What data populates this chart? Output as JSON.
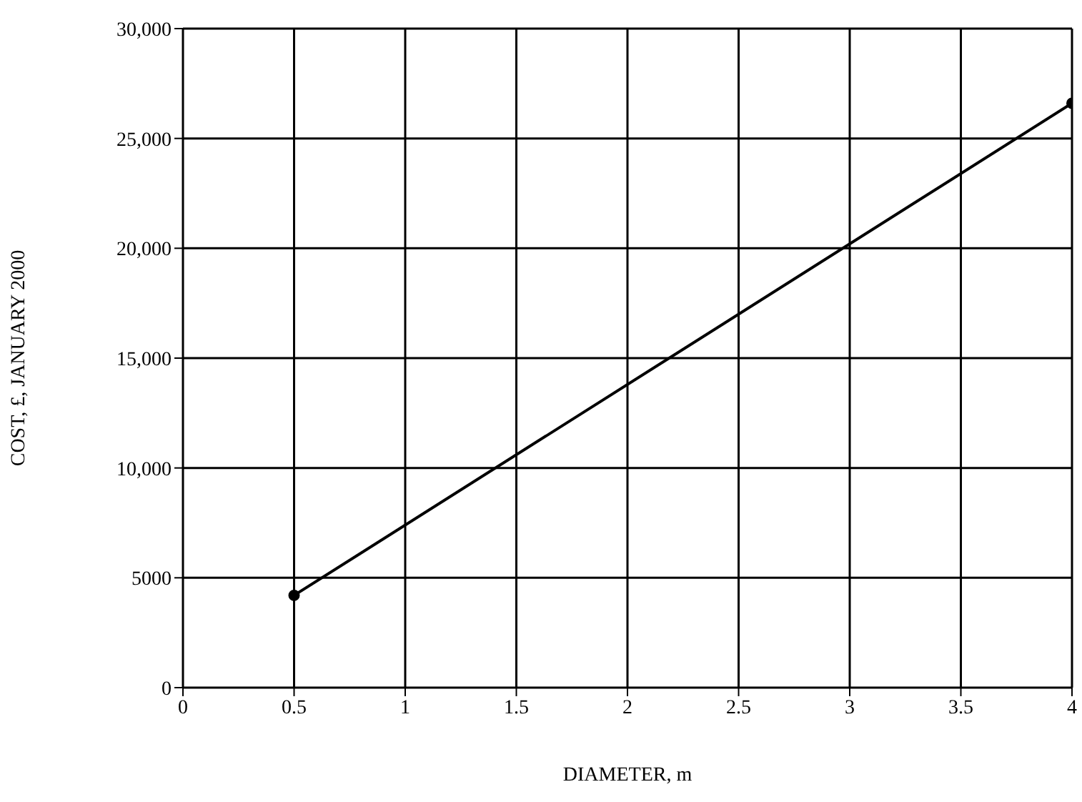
{
  "chart_data": {
    "type": "line",
    "xlabel": "DIAMETER, m",
    "ylabel": "COST, £, JANUARY 2000",
    "x": [
      0.5,
      4
    ],
    "series": [
      {
        "color": "#000000",
        "values": [
          4200,
          26600
        ]
      }
    ],
    "xlim": [
      0,
      4
    ],
    "xticks": [
      0,
      0.5,
      1,
      1.5,
      2,
      2.5,
      3,
      3.5,
      4
    ],
    "ylim": [
      0,
      30000
    ],
    "yticks": [
      0,
      5000,
      {
        "value": 10000,
        "label": "10,000"
      },
      {
        "value": 15000,
        "label": "15,000"
      },
      {
        "value": 20000,
        "label": "20,000"
      },
      {
        "value": 25000,
        "label": "25,000"
      },
      {
        "value": 30000,
        "label": "30,000"
      }
    ],
    "grid": true,
    "marker": "circle",
    "line_style": "solid"
  }
}
